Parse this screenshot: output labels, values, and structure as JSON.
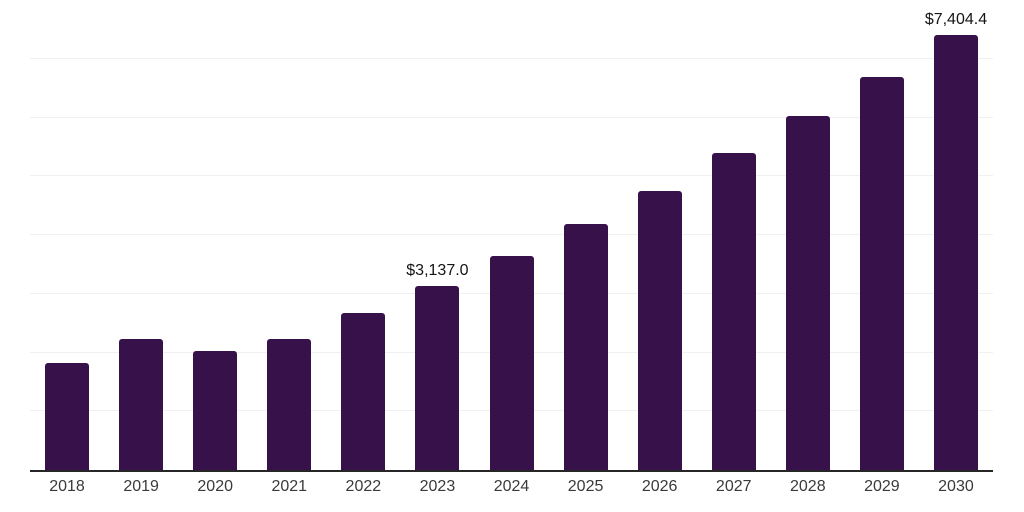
{
  "chart_data": {
    "type": "bar",
    "title": "",
    "xlabel": "",
    "ylabel": "",
    "categories": [
      "2018",
      "2019",
      "2020",
      "2021",
      "2022",
      "2023",
      "2024",
      "2025",
      "2026",
      "2027",
      "2028",
      "2029",
      "2030"
    ],
    "values": [
      1815,
      2225,
      2020,
      2225,
      2665,
      3137.0,
      3635,
      4180,
      4755,
      5400,
      6030,
      6690,
      7404.4
    ],
    "data_labels": {
      "2023": "$3,137.0",
      "2030": "$7,404.4"
    },
    "ylim": [
      0,
      8000
    ],
    "gridline_interval": 1000,
    "grid": "horizontal-only",
    "y_tick_labels_visible": false,
    "legend_position": "none",
    "colors": {
      "bar": "#36114A",
      "axis_line": "#262626",
      "gridline": "#f0f0f0",
      "tick_label": "#3a3a3a",
      "data_label": "#141414",
      "background": "#ffffff"
    }
  }
}
